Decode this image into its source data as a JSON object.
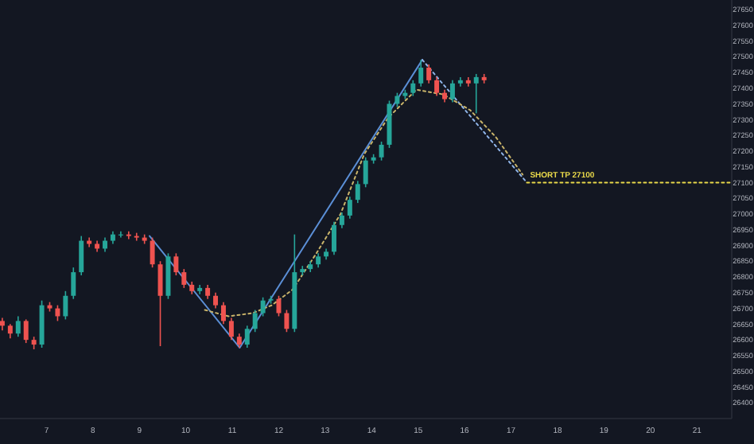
{
  "chart_data": {
    "type": "candlestick",
    "x": [
      6.05,
      6.22,
      6.39,
      6.56,
      6.73,
      6.9,
      7.07,
      7.24,
      7.41,
      7.58,
      7.75,
      7.92,
      8.09,
      8.26,
      8.43,
      8.6,
      8.77,
      8.94,
      9.11,
      9.28,
      9.45,
      9.62,
      9.79,
      9.96,
      10.13,
      10.3,
      10.47,
      10.64,
      10.81,
      10.98,
      11.15,
      11.32,
      11.49,
      11.66,
      11.83,
      12.0,
      12.17,
      12.34,
      12.51,
      12.68,
      12.85,
      13.02,
      13.19,
      13.36,
      13.53,
      13.7,
      13.87,
      14.04,
      14.21,
      14.38,
      14.55,
      14.72,
      14.89,
      15.06,
      15.23,
      15.4,
      15.57,
      15.74,
      15.91,
      16.08,
      16.25,
      16.42
    ],
    "ohlc": [
      [
        26660,
        26670,
        26630,
        26645
      ],
      [
        26645,
        26650,
        26605,
        26620
      ],
      [
        26620,
        26675,
        26610,
        26660
      ],
      [
        26660,
        26665,
        26590,
        26600
      ],
      [
        26600,
        26610,
        26570,
        26585
      ],
      [
        26585,
        26725,
        26575,
        26710
      ],
      [
        26710,
        26720,
        26690,
        26700
      ],
      [
        26700,
        26710,
        26660,
        26675
      ],
      [
        26675,
        26755,
        26665,
        26740
      ],
      [
        26740,
        26830,
        26730,
        26815
      ],
      [
        26815,
        26930,
        26805,
        26915
      ],
      [
        26915,
        26925,
        26895,
        26905
      ],
      [
        26905,
        26915,
        26880,
        26890
      ],
      [
        26890,
        26925,
        26880,
        26915
      ],
      [
        26915,
        26945,
        26905,
        26935
      ],
      [
        26935,
        26945,
        26925,
        26935
      ],
      [
        26935,
        26945,
        26920,
        26930
      ],
      [
        26930,
        26940,
        26915,
        26925
      ],
      [
        26925,
        26935,
        26905,
        26915
      ],
      [
        26915,
        26925,
        26830,
        26840
      ],
      [
        26840,
        26850,
        26580,
        26740
      ],
      [
        26740,
        26875,
        26730,
        26865
      ],
      [
        26865,
        26875,
        26805,
        26815
      ],
      [
        26815,
        26825,
        26765,
        26775
      ],
      [
        26775,
        26785,
        26745,
        26755
      ],
      [
        26755,
        26775,
        26745,
        26765
      ],
      [
        26765,
        26775,
        26730,
        26740
      ],
      [
        26740,
        26750,
        26700,
        26710
      ],
      [
        26710,
        26720,
        26650,
        26660
      ],
      [
        26660,
        26670,
        26600,
        26610
      ],
      [
        26610,
        26620,
        26575,
        26585
      ],
      [
        26585,
        26645,
        26575,
        26635
      ],
      [
        26635,
        26695,
        26625,
        26685
      ],
      [
        26685,
        26735,
        26675,
        26725
      ],
      [
        26725,
        26740,
        26715,
        26730
      ],
      [
        26730,
        26740,
        26675,
        26685
      ],
      [
        26685,
        26695,
        26625,
        26635
      ],
      [
        26635,
        26935,
        26625,
        26815
      ],
      [
        26815,
        26835,
        26805,
        26825
      ],
      [
        26825,
        26850,
        26815,
        26840
      ],
      [
        26840,
        26875,
        26830,
        26865
      ],
      [
        26865,
        26890,
        26855,
        26880
      ],
      [
        26880,
        26975,
        26870,
        26965
      ],
      [
        26965,
        27005,
        26955,
        26995
      ],
      [
        26995,
        27055,
        26985,
        27045
      ],
      [
        27045,
        27105,
        27035,
        27095
      ],
      [
        27095,
        27180,
        27085,
        27170
      ],
      [
        27170,
        27190,
        27160,
        27180
      ],
      [
        27180,
        27230,
        27170,
        27220
      ],
      [
        27220,
        27360,
        27210,
        27350
      ],
      [
        27350,
        27385,
        27340,
        27375
      ],
      [
        27375,
        27395,
        27365,
        27385
      ],
      [
        27385,
        27425,
        27375,
        27415
      ],
      [
        27415,
        27490,
        27405,
        27465
      ],
      [
        27465,
        27475,
        27415,
        27425
      ],
      [
        27425,
        27435,
        27375,
        27385
      ],
      [
        27385,
        27395,
        27355,
        27365
      ],
      [
        27365,
        27425,
        27355,
        27415
      ],
      [
        27415,
        27435,
        27405,
        27425
      ],
      [
        27425,
        27435,
        27405,
        27415
      ],
      [
        27415,
        27445,
        27320,
        27435
      ],
      [
        27435,
        27445,
        27415,
        27425
      ]
    ],
    "colors": [
      "#ef5350",
      "#ef5350",
      "#26a69a",
      "#ef5350",
      "#ef5350",
      "#26a69a",
      "#ef5350",
      "#ef5350",
      "#26a69a",
      "#26a69a",
      "#26a69a",
      "#ef5350",
      "#ef5350",
      "#26a69a",
      "#26a69a",
      "#26a69a",
      "#ef5350",
      "#ef5350",
      "#ef5350",
      "#ef5350",
      "#ef5350",
      "#26a69a",
      "#ef5350",
      "#ef5350",
      "#ef5350",
      "#26a69a",
      "#ef5350",
      "#ef5350",
      "#ef5350",
      "#ef5350",
      "#ef5350",
      "#26a69a",
      "#26a69a",
      "#26a69a",
      "#26a69a",
      "#ef5350",
      "#ef5350",
      "#26a69a",
      "#26a69a",
      "#26a69a",
      "#26a69a",
      "#26a69a",
      "#26a69a",
      "#26a69a",
      "#26a69a",
      "#26a69a",
      "#26a69a",
      "#26a69a",
      "#26a69a",
      "#26a69a",
      "#26a69a",
      "#26a69a",
      "#26a69a",
      "#26a69a",
      "#ef5350",
      "#ef5350",
      "#ef5350",
      "#26a69a",
      "#26a69a",
      "#ef5350",
      "#26a69a",
      "#ef5350"
    ],
    "series": [
      {
        "type": "line",
        "color": "#5b8fd6",
        "line_style": "solid",
        "x": [
          9.22,
          11.16,
          15.09
        ],
        "values": [
          26930,
          26575,
          27490
        ]
      },
      {
        "type": "line",
        "color": "#8fb4e8",
        "line_style": "dotted",
        "x": [
          15.09,
          17.34
        ],
        "values": [
          27490,
          27100
        ]
      },
      {
        "type": "line",
        "color": "#c9b46a",
        "line_style": "dotted",
        "x": [
          10.41,
          10.92,
          11.44,
          11.85,
          12.3,
          12.81,
          13.33,
          13.84,
          14.35,
          14.96,
          15.54,
          16.12,
          16.67,
          17.25
        ],
        "values": [
          26695,
          26675,
          26685,
          26710,
          26760,
          26875,
          27000,
          27190,
          27305,
          27395,
          27380,
          27330,
          27245,
          27125
        ]
      },
      {
        "type": "line",
        "color": "#e8d84a",
        "line_style": "dotted",
        "x": [
          17.34,
          21.75
        ],
        "values": [
          27100,
          27100
        ]
      }
    ],
    "annotations": [
      {
        "text": "SHORT TP 27100",
        "x": 17.34,
        "y": 27100
      }
    ],
    "xlim": [
      6,
      21.75
    ],
    "xticks": [
      7,
      8,
      9,
      10,
      11,
      12,
      13,
      14,
      15,
      16,
      17,
      18,
      19,
      20,
      21
    ],
    "ylim": [
      26350,
      27680
    ],
    "yticks": [
      26400,
      26450,
      26500,
      26550,
      26600,
      26650,
      26700,
      26750,
      26800,
      26850,
      26900,
      26950,
      27000,
      27050,
      27100,
      27150,
      27200,
      27250,
      27300,
      27350,
      27400,
      27450,
      27500,
      27550,
      27600,
      27650
    ],
    "grid": false
  }
}
